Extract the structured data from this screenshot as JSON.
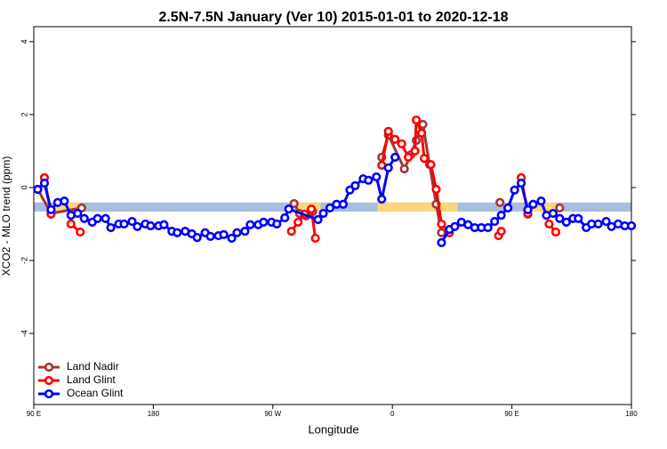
{
  "chart_data": {
    "type": "line",
    "title": "2.5N-7.5N January (Ver 10)   2015-01-01 to 2020-12-18",
    "xlabel": "Longitude",
    "ylabel": "XCO2 - MLO trend (ppm)",
    "xlim": [
      90,
      540
    ],
    "ylim": [
      -5.95,
      4.41
    ],
    "xticks": [
      {
        "value": 90,
        "label": "90 E"
      },
      {
        "value": 180,
        "label": "180"
      },
      {
        "value": 270,
        "label": "90 W"
      },
      {
        "value": 360,
        "label": "0"
      },
      {
        "value": 450,
        "label": "90 E"
      },
      {
        "value": 540,
        "label": "180"
      }
    ],
    "yticks": [
      -4,
      -2,
      0,
      2,
      4
    ],
    "band": {
      "range": [
        -0.66,
        -0.41
      ],
      "color": "#a7bedf"
    },
    "highlights": {
      "color": "#f8d878",
      "ranges": [
        [
          105,
          125
        ],
        [
          284,
          306
        ],
        [
          349,
          409
        ],
        [
          463,
          483
        ]
      ]
    },
    "legend": "bottom-left",
    "series": [
      {
        "name": "Land Nadir",
        "color": "#a33636",
        "x": [
          93,
          103,
          126,
          200,
          286,
          290,
          295,
          300,
          320,
          352,
          357,
          369,
          374,
          378,
          383,
          388,
          393,
          397,
          403,
          430,
          441,
          450,
          462,
          470,
          486
        ],
        "values": [
          -0.05,
          -0.71,
          -0.56,
          null,
          -0.44,
          -0.71,
          -0.78,
          -0.66,
          null,
          0.83,
          1.44,
          0.51,
          0.9,
          1.29,
          1.73,
          0.63,
          -0.46,
          -1.24,
          -1.15,
          null,
          -0.41,
          null,
          -0.73,
          null,
          -0.56
        ]
      },
      {
        "name": "Land Glint",
        "color": "#ff0000",
        "x": [
          98,
          103,
          110,
          118,
          125,
          200,
          284,
          289,
          294,
          299,
          302,
          320,
          352,
          357,
          362,
          367,
          372,
          377,
          378,
          382,
          384,
          389,
          393,
          397,
          403,
          430,
          440,
          442,
          450,
          457,
          462,
          470,
          478,
          483
        ],
        "values": [
          0.27,
          -0.73,
          null,
          -1.0,
          -1.22,
          null,
          -1.2,
          -0.95,
          -0.73,
          -0.59,
          -1.39,
          null,
          0.61,
          1.54,
          1.32,
          1.2,
          0.83,
          1.0,
          1.85,
          1.49,
          0.8,
          0.63,
          -0.05,
          -1.0,
          -1.24,
          null,
          -1.32,
          -1.2,
          null,
          0.27,
          -0.71,
          null,
          -1.0,
          -1.22
        ]
      },
      {
        "name": "Ocean Glint",
        "color": "#0000ff",
        "x": [
          93,
          98,
          103,
          108,
          113,
          118,
          123,
          128,
          134,
          138,
          144,
          148,
          154,
          158,
          164,
          168,
          174,
          178,
          184,
          188,
          194,
          198,
          204,
          209,
          213,
          219,
          223,
          229,
          233,
          239,
          243,
          249,
          253,
          259,
          263,
          269,
          273,
          279,
          282,
          304,
          308,
          313,
          318,
          323,
          328,
          332,
          338,
          342,
          348,
          352,
          357,
          362,
          380,
          397,
          403,
          407,
          412,
          417,
          422,
          427,
          432,
          437,
          442,
          447,
          452,
          457,
          462,
          466,
          472,
          476,
          481,
          486,
          491,
          496,
          500,
          506,
          510,
          515,
          521,
          525,
          530,
          535,
          540
        ],
        "values": [
          -0.05,
          0.12,
          -0.61,
          -0.41,
          -0.37,
          -0.76,
          -0.71,
          -0.85,
          -0.95,
          -0.85,
          -0.85,
          -1.1,
          -1.0,
          -1.0,
          -0.93,
          -1.07,
          -1.0,
          -1.05,
          -1.05,
          -1.02,
          -1.2,
          -1.24,
          -1.2,
          -1.27,
          -1.37,
          -1.24,
          -1.34,
          -1.32,
          -1.29,
          -1.39,
          -1.24,
          -1.2,
          -1.02,
          -1.02,
          -0.95,
          -0.95,
          -1.0,
          -0.83,
          -0.59,
          -0.88,
          -0.71,
          -0.56,
          -0.46,
          -0.46,
          -0.07,
          0.05,
          0.24,
          0.2,
          0.29,
          -0.32,
          0.54,
          0.83,
          null,
          -1.51,
          -1.15,
          -1.07,
          -0.95,
          -1.02,
          -1.1,
          -1.1,
          -1.1,
          -0.93,
          -0.76,
          -0.56,
          -0.07,
          0.12,
          -0.61,
          -0.46,
          -0.37,
          -0.76,
          -0.71,
          -0.85,
          -0.95,
          -0.85,
          -0.85,
          -1.1,
          -1.0,
          -1.0,
          -0.93,
          -1.07,
          -1.0,
          -1.05,
          -1.05
        ]
      }
    ]
  }
}
